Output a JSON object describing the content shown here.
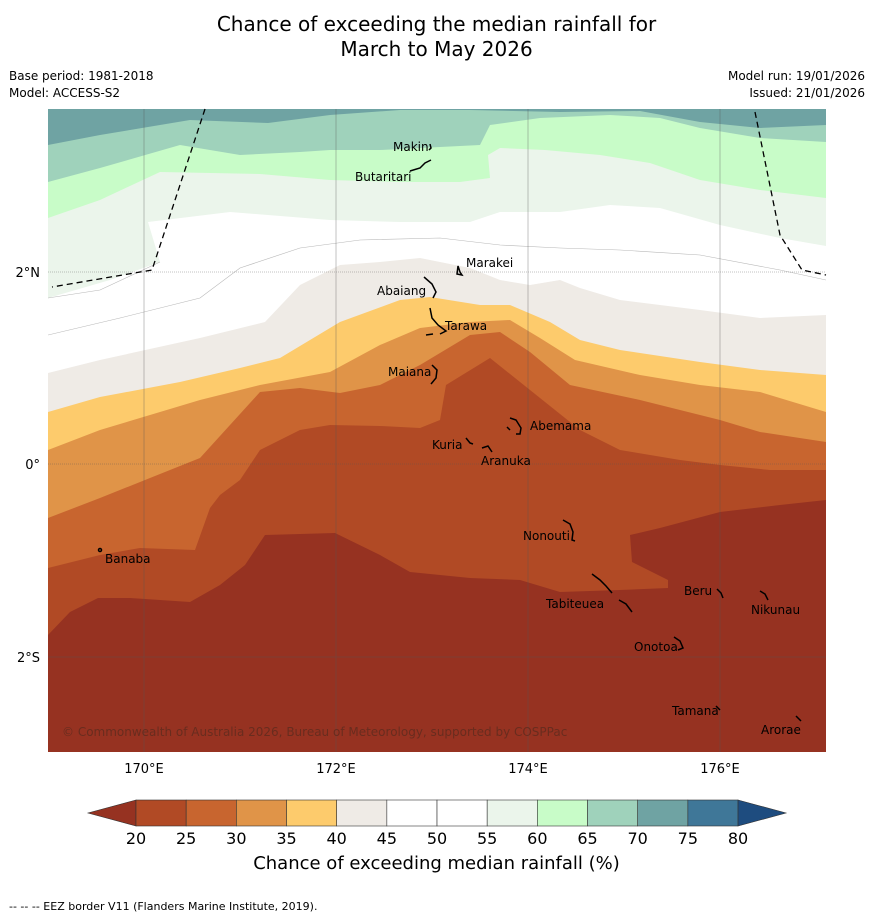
{
  "title": {
    "line1": "Chance of exceeding the median rainfall for",
    "line2": "March to May 2026"
  },
  "meta": {
    "base_period": "Base period: 1981-2018",
    "model": "Model: ACCESS-S2",
    "model_run": "Model run: 19/01/2026",
    "issued": "Issued: 21/01/2026"
  },
  "axes": {
    "x_ticks": [
      "170°E",
      "172°E",
      "174°E",
      "176°E"
    ],
    "y_ticks": [
      "2°N",
      "0°",
      "2°S"
    ]
  },
  "places": [
    {
      "name": "Makin"
    },
    {
      "name": "Butaritari"
    },
    {
      "name": "Marakei"
    },
    {
      "name": "Abaiang"
    },
    {
      "name": "Tarawa"
    },
    {
      "name": "Maiana"
    },
    {
      "name": "Abemama"
    },
    {
      "name": "Kuria"
    },
    {
      "name": "Aranuka"
    },
    {
      "name": "Nonouti"
    },
    {
      "name": "Banaba"
    },
    {
      "name": "Beru"
    },
    {
      "name": "Tabiteuea"
    },
    {
      "name": "Nikunau"
    },
    {
      "name": "Onotoa"
    },
    {
      "name": "Tamana"
    },
    {
      "name": "Arorae"
    }
  ],
  "copyright": "© Commonwealth of Australia 2026, Bureau of Meteorology, supported by COSPPac",
  "colorbar": {
    "ticks": [
      "20",
      "25",
      "30",
      "35",
      "40",
      "45",
      "50",
      "55",
      "60",
      "65",
      "70",
      "75",
      "80"
    ],
    "colors": [
      "#963221",
      "#b14a25",
      "#c8652f",
      "#e09448",
      "#fdcb6c",
      "#efebe6",
      "#ffffff",
      "#ffffff",
      "#ebf5eb",
      "#c8fcc8",
      "#9fd2bb",
      "#6fa3a3",
      "#3f7798",
      "#1e4c7f"
    ],
    "label": "Chance of exceeding median rainfall (%)"
  },
  "footnote": "--  --  -- EEZ border V11 (Flanders Marine Institute, 2019)."
}
